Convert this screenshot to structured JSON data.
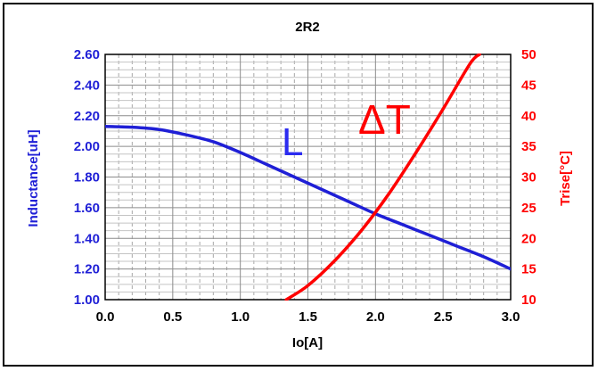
{
  "chart_data": {
    "type": "line",
    "title": "2R2",
    "xlabel": "Io[A]",
    "ylabel_left": "Inductance[uH]",
    "ylabel_right": "Trise[°C]",
    "xlim": [
      0.0,
      3.0
    ],
    "ylim_left": [
      1.0,
      2.6
    ],
    "ylim_right": [
      10,
      50
    ],
    "x_ticks": [
      "0.0",
      "0.5",
      "1.0",
      "1.5",
      "2.0",
      "2.5",
      "3.0"
    ],
    "y_left_ticks": [
      "1.00",
      "1.20",
      "1.40",
      "1.60",
      "1.80",
      "2.00",
      "2.20",
      "2.40",
      "2.60"
    ],
    "y_right_ticks": [
      "10",
      "15",
      "20",
      "25",
      "30",
      "35",
      "40",
      "45",
      "50"
    ],
    "grid": true,
    "series": [
      {
        "name": "L",
        "axis": "left",
        "color": "#1f1fd6",
        "x": [
          0.0,
          0.2,
          0.4,
          0.6,
          0.8,
          1.0,
          1.2,
          1.4,
          1.6,
          1.8,
          2.0,
          2.2,
          2.4,
          2.6,
          2.8,
          3.0
        ],
        "y": [
          2.13,
          2.125,
          2.11,
          2.075,
          2.03,
          1.96,
          1.88,
          1.8,
          1.72,
          1.64,
          1.56,
          1.49,
          1.42,
          1.35,
          1.28,
          1.2
        ]
      },
      {
        "name": "ΔT",
        "axis": "right",
        "color": "#ff0000",
        "x": [
          1.34,
          1.5,
          1.7,
          1.9,
          2.1,
          2.3,
          2.5,
          2.7,
          2.77
        ],
        "y": [
          10,
          12.3,
          16.4,
          21.4,
          27.3,
          34.0,
          41.1,
          48.5,
          50
        ]
      }
    ]
  }
}
